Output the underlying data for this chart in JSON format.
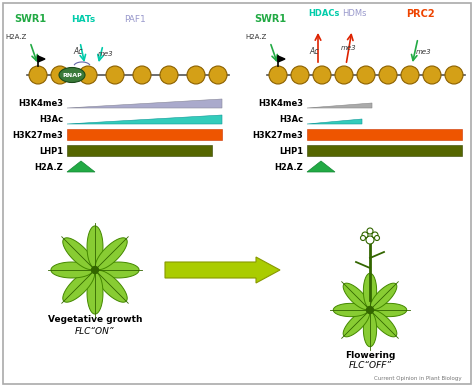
{
  "nuc_color": "#d4a017",
  "nuc_edge": "#8b6000",
  "rnap_color": "#3a7a3a",
  "label_color": "#222222",
  "swr1_color": "#22aa44",
  "hats_color": "#00ccaa",
  "paf1_color": "#9999cc",
  "hdacs_color": "#00ccaa",
  "hdms_color": "#9999cc",
  "prc2_color": "#ee4400",
  "red_arrow": "#dd2200",
  "green_arrow_label": "#22aa44",
  "tri_blue": "#aaaacc",
  "tri_teal": "#33ccbb",
  "bar_orange": "#ee5500",
  "bar_green": "#556600",
  "h2az_green": "#22aa44",
  "plant_fill": "#88cc33",
  "plant_edge": "#448800",
  "plant_dark": "#336600",
  "arrow_fill": "#aacc00",
  "arrow_edge": "#889900",
  "journal": "Current Opinion in Plant Biology",
  "left_labels": [
    "H3K4me3",
    "H3Ac",
    "H3K27me3",
    "LHP1",
    "H2A.Z"
  ],
  "right_labels": [
    "H3K4me3",
    "H3Ac",
    "H3K27me3",
    "LHP1",
    "H2A.Z"
  ]
}
